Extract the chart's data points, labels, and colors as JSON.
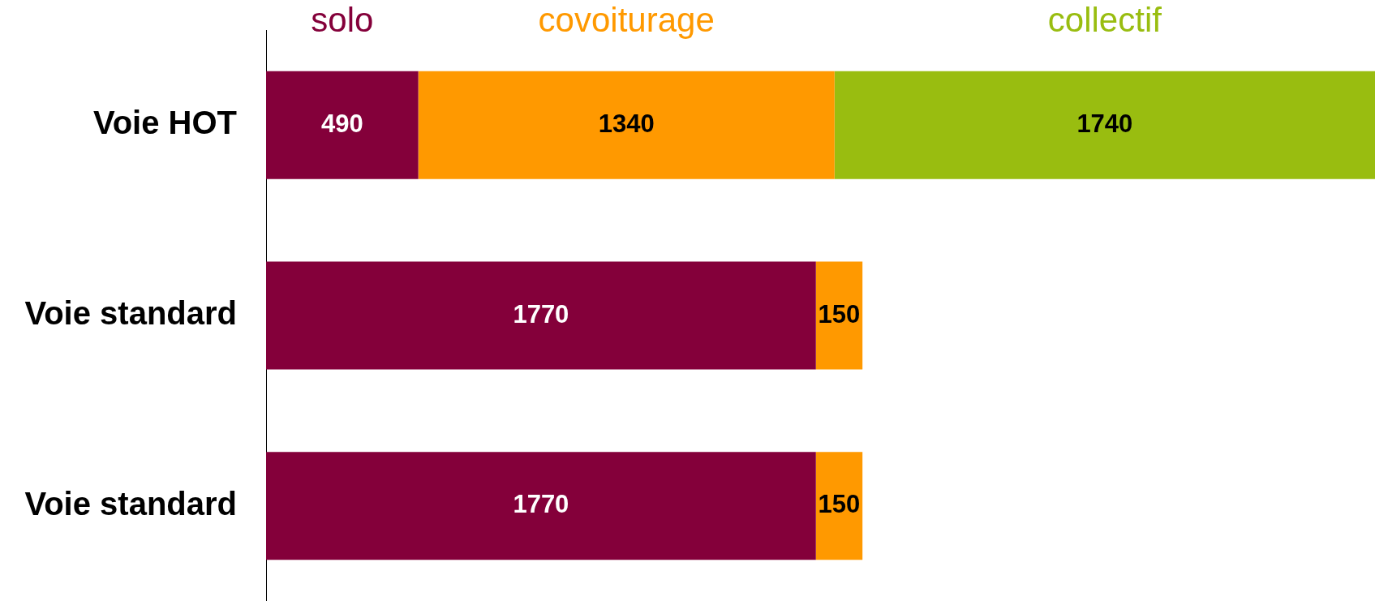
{
  "chart_data": {
    "type": "bar",
    "orientation": "horizontal",
    "stacked": true,
    "categories": [
      "Voie HOT",
      "Voie standard",
      "Voie standard"
    ],
    "series": [
      {
        "name": "solo",
        "color": "#84003a",
        "values": [
          490,
          1770,
          1770
        ]
      },
      {
        "name": "covoiturage",
        "color": "#ff9900",
        "values": [
          1340,
          150,
          150
        ]
      },
      {
        "name": "collectif",
        "color": "#99bd10",
        "values": [
          1740,
          null,
          null
        ]
      }
    ],
    "data_labels": true
  }
}
